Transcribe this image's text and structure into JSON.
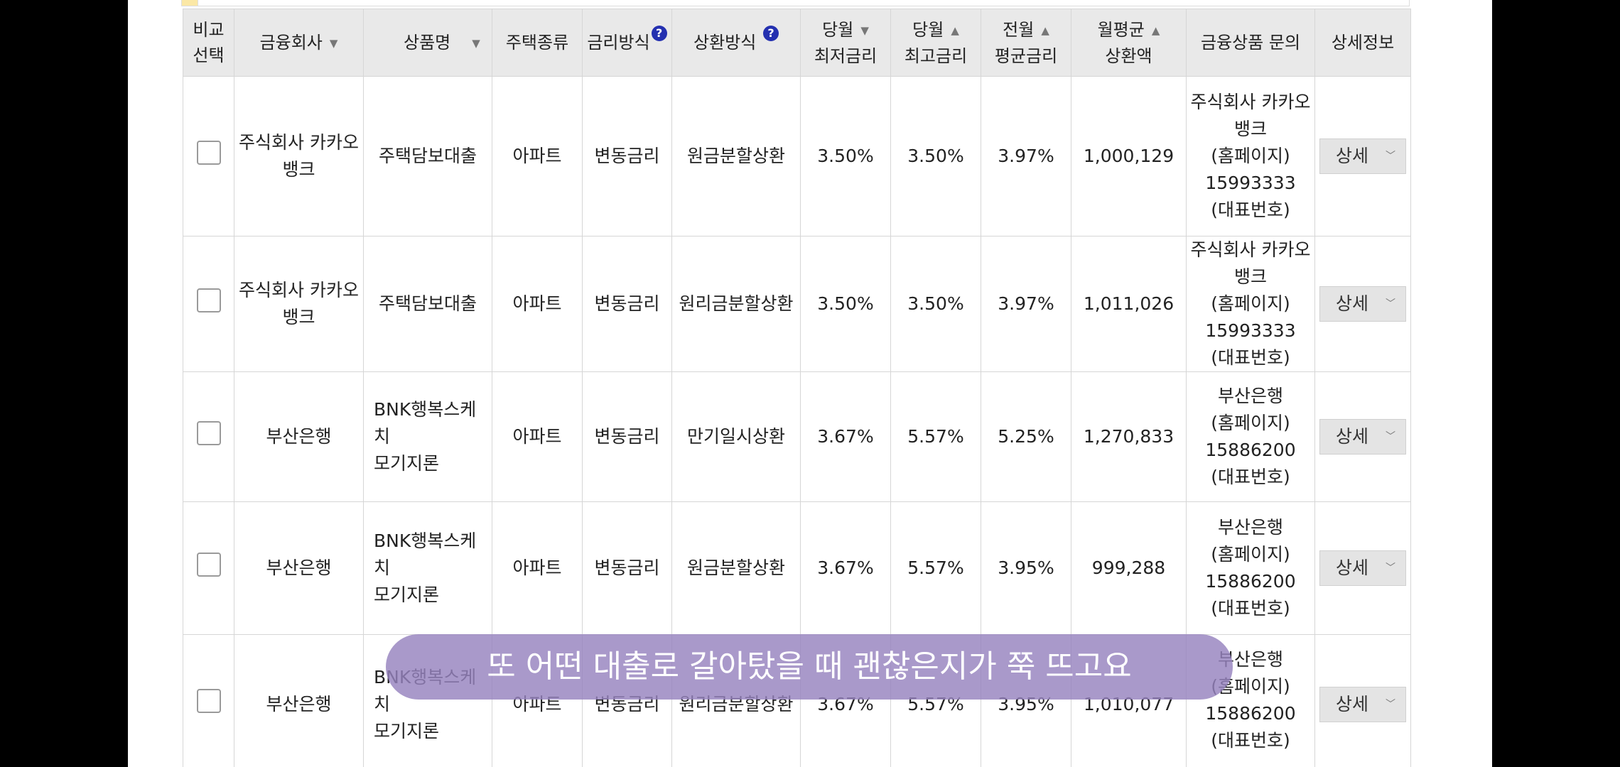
{
  "headers": {
    "select": [
      "비교",
      "선택"
    ],
    "company": "금융회사",
    "product": "상품명",
    "house_type": "주택종류",
    "rate_method": "금리방식",
    "repay_method": "상환방식",
    "cur_min": [
      "당월",
      "최저금리"
    ],
    "cur_max": [
      "당월",
      "최고금리"
    ],
    "prev_avg": [
      "전월",
      "평균금리"
    ],
    "monthly": [
      "월평균",
      "상환액"
    ],
    "inquiry": "금융상품 문의",
    "detail": "상세정보",
    "help_mark": "?"
  },
  "rows": [
    {
      "company": [
        "주식회사 카카오",
        "뱅크"
      ],
      "product": [
        "주택담보대출"
      ],
      "house": "아파트",
      "rate_method": "변동금리",
      "repay": "원금분할상환",
      "min": "3.50%",
      "max": "3.50%",
      "avg": "3.97%",
      "monthly": "1,000,129",
      "inquiry": [
        "주식회사 카카오",
        "뱅크",
        "(홈페이지)",
        "15993333",
        "(대표번호)"
      ],
      "detail": "상세"
    },
    {
      "company": [
        "주식회사 카카오",
        "뱅크"
      ],
      "product": [
        "주택담보대출"
      ],
      "house": "아파트",
      "rate_method": "변동금리",
      "repay": "원리금분할상환",
      "min": "3.50%",
      "max": "3.50%",
      "avg": "3.97%",
      "monthly": "1,011,026",
      "inquiry": [
        "주식회사 카카오",
        "뱅크",
        "(홈페이지)",
        "15993333",
        "(대표번호)"
      ],
      "detail": "상세"
    },
    {
      "company": [
        "부산은행"
      ],
      "product": [
        "BNK행복스케치",
        "모기지론"
      ],
      "house": "아파트",
      "rate_method": "변동금리",
      "repay": "만기일시상환",
      "min": "3.67%",
      "max": "5.57%",
      "avg": "5.25%",
      "monthly": "1,270,833",
      "inquiry": [
        "부산은행",
        "(홈페이지)",
        "15886200",
        "(대표번호)"
      ],
      "detail": "상세"
    },
    {
      "company": [
        "부산은행"
      ],
      "product": [
        "BNK행복스케치",
        "모기지론"
      ],
      "house": "아파트",
      "rate_method": "변동금리",
      "repay": "원금분할상환",
      "min": "3.67%",
      "max": "5.57%",
      "avg": "3.95%",
      "monthly": "999,288",
      "inquiry": [
        "부산은행",
        "(홈페이지)",
        "15886200",
        "(대표번호)"
      ],
      "detail": "상세"
    },
    {
      "company": [
        "부산은행"
      ],
      "product": [
        "BNK행복스케치",
        "모기지론"
      ],
      "house": "아파트",
      "rate_method": "변동금리",
      "repay": "원리금분할상환",
      "min": "3.67%",
      "max": "5.57%",
      "avg": "3.95%",
      "monthly": "1,010,077",
      "inquiry": [
        "부산은행",
        "(홈페이지)",
        "15886200",
        "(대표번호)"
      ],
      "detail": "상세"
    }
  ],
  "caption": "또 어떤 대출로 갈아탔을 때 괜찮은지가 쭉 뜨고요"
}
